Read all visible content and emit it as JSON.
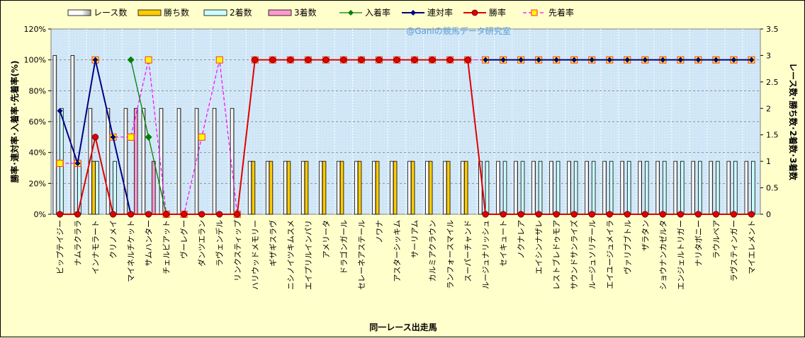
{
  "chart_data": {
    "type": "bar",
    "watermark": "@Ganiの競馬データ研究室",
    "xlabel": "同一レース出走馬",
    "ylabel_left": "勝率･連対率･入着率･先着率(%)",
    "ylabel_right": "レース数･勝ち数･2着数･3着数",
    "y_left": {
      "ticks": [
        "0%",
        "20%",
        "40%",
        "60%",
        "80%",
        "100%",
        "120%"
      ],
      "range": [
        0,
        120
      ]
    },
    "y_right": {
      "ticks": [
        "0",
        "0.5",
        "1",
        "1.5",
        "2",
        "2.5",
        "3",
        "3.5"
      ],
      "range": [
        0,
        3.5
      ]
    },
    "grid": true,
    "legend_placement": "top",
    "colors": {
      "plot_bg": "#cfe6f7",
      "races": "#ffffff",
      "wins": "#ffcc00",
      "seconds": "#ccffff",
      "thirds": "#ff99cc",
      "place_rate": "#008000",
      "rentai_rate": "#000080",
      "win_rate": "#e00000",
      "senchaku_rate": "#ff00ff",
      "marker_yellow": "#ffff00"
    },
    "legend": [
      "レース数",
      "勝ち数",
      "2着数",
      "3着数",
      "入着率",
      "連対率",
      "勝率",
      "先着率"
    ],
    "categories": [
      "ビップテイジー",
      "ナムラクララ",
      "インナモラート",
      "クリノメイ",
      "マイネルチケット",
      "サムハンター",
      "チェルビアット",
      "ヴーレグー",
      "ダンツエラン",
      "ラヴェンデル",
      "リンクスティップ",
      "ハリウッドメモリー",
      "ギザギスラヴ",
      "ニシノイツキムスメ",
      "エイプリルインパリ",
      "アメリータ",
      "ドラゴンガール",
      "セレーネアステール",
      "ノワナ",
      "アスターシッキム",
      "サーリアム",
      "カルミアクラウン",
      "ランフォースマイル",
      "スーパーチャンド",
      "ルージュナリッシュ",
      "セイキュート",
      "ノクナレア",
      "エイシンナザレ",
      "レストブレドゥモア",
      "サウンドサンライズ",
      "ルージュソリテール",
      "エイユージュメイラ",
      "ヴァリブブトル",
      "ザラタン",
      "ショウナンカゼルタ",
      "エンジェルトリガー",
      "ナリタボニー",
      "ラウルベア",
      "ラヴスティンガー",
      "マイエレメント"
    ],
    "series": [
      {
        "name": "レース数",
        "values": [
          3,
          3,
          2,
          2,
          2,
          2,
          2,
          2,
          2,
          2,
          2,
          1,
          1,
          1,
          1,
          1,
          1,
          1,
          1,
          1,
          1,
          1,
          1,
          1,
          1,
          1,
          1,
          1,
          1,
          1,
          1,
          1,
          1,
          1,
          1,
          1,
          1,
          1,
          1,
          1
        ]
      },
      {
        "name": "勝ち数",
        "values": [
          0,
          0,
          1,
          0,
          0,
          0,
          0,
          0,
          0,
          0,
          0,
          1,
          1,
          1,
          1,
          1,
          1,
          1,
          1,
          1,
          1,
          1,
          1,
          1,
          0,
          0,
          0,
          0,
          0,
          0,
          0,
          0,
          0,
          0,
          0,
          0,
          0,
          0,
          0,
          0
        ]
      },
      {
        "name": "2着数",
        "values": [
          2,
          1,
          1,
          1,
          0,
          0,
          0,
          0,
          0,
          0,
          0,
          0,
          0,
          0,
          0,
          0,
          0,
          0,
          0,
          0,
          0,
          0,
          0,
          0,
          1,
          1,
          1,
          1,
          1,
          1,
          1,
          1,
          1,
          1,
          1,
          1,
          1,
          1,
          1,
          1
        ]
      },
      {
        "name": "3着数",
        "values": [
          0,
          0,
          0,
          0,
          2,
          1,
          0,
          0,
          0,
          0,
          0,
          0,
          0,
          0,
          0,
          0,
          0,
          0,
          0,
          0,
          0,
          0,
          0,
          0,
          0,
          0,
          0,
          0,
          0,
          0,
          0,
          0,
          0,
          0,
          0,
          0,
          0,
          0,
          0,
          0
        ]
      },
      {
        "name": "入着率",
        "values": [
          null,
          null,
          null,
          null,
          100,
          50,
          0,
          null,
          null,
          null,
          null,
          null,
          null,
          null,
          null,
          null,
          null,
          null,
          null,
          null,
          null,
          null,
          null,
          null,
          null,
          null,
          null,
          null,
          null,
          null,
          null,
          null,
          null,
          null,
          null,
          null,
          null,
          null,
          null,
          null
        ]
      },
      {
        "name": "連対率",
        "values": [
          67,
          33,
          100,
          50,
          0,
          null,
          null,
          null,
          null,
          null,
          null,
          null,
          null,
          null,
          null,
          null,
          null,
          null,
          null,
          null,
          null,
          null,
          null,
          null,
          100,
          100,
          100,
          100,
          100,
          100,
          100,
          100,
          100,
          100,
          100,
          100,
          100,
          100,
          100,
          100
        ]
      },
      {
        "name": "勝率",
        "values": [
          0,
          0,
          50,
          0,
          0,
          0,
          0,
          0,
          0,
          0,
          0,
          100,
          100,
          100,
          100,
          100,
          100,
          100,
          100,
          100,
          100,
          100,
          100,
          100,
          0,
          0,
          0,
          0,
          0,
          0,
          0,
          0,
          0,
          0,
          0,
          0,
          0,
          0,
          0,
          0
        ]
      },
      {
        "name": "先着率",
        "values": [
          33,
          33,
          100,
          50,
          50,
          100,
          0,
          0,
          50,
          100,
          0,
          100,
          100,
          100,
          100,
          100,
          100,
          100,
          100,
          100,
          100,
          100,
          100,
          100,
          100,
          100,
          100,
          100,
          100,
          100,
          100,
          100,
          100,
          100,
          100,
          100,
          100,
          100,
          100,
          100
        ]
      }
    ]
  }
}
